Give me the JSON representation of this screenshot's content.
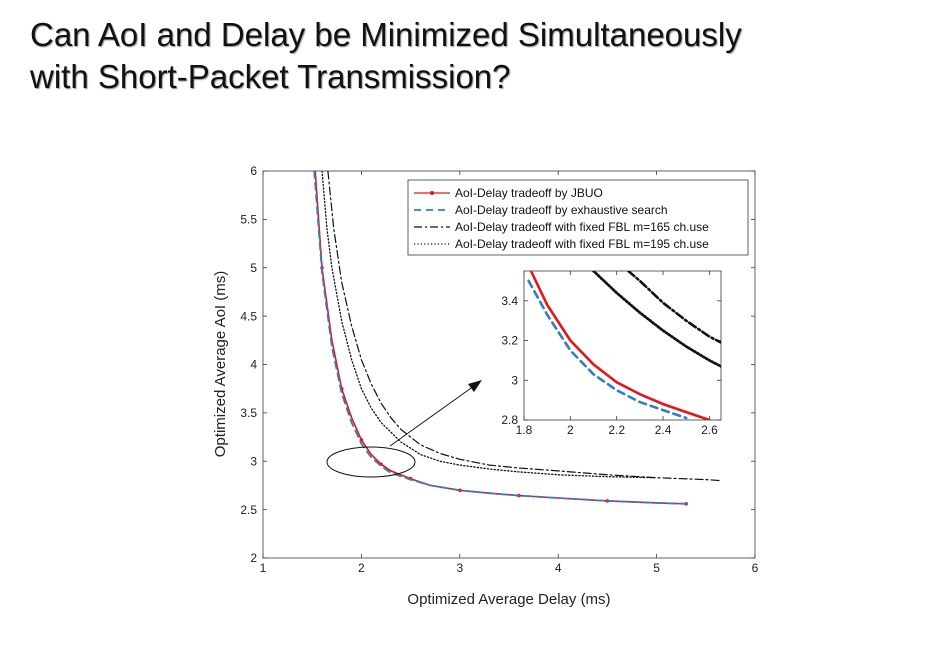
{
  "slide": {
    "title_line1": "Can AoI and Delay be Minimized Simultaneously",
    "title_line2": "with Short-Packet Transmission?"
  },
  "chart_data": [
    {
      "type": "line",
      "xlabel": "Optimized Average Delay (ms)",
      "ylabel": "Optimized Average AoI (ms)",
      "xlim": [
        1,
        6
      ],
      "ylim": [
        2,
        6
      ],
      "xticks": [
        "1",
        "2",
        "3",
        "4",
        "5",
        "6"
      ],
      "yticks": [
        "2",
        "2.5",
        "3",
        "3.5",
        "4",
        "4.5",
        "5",
        "5.5",
        "6"
      ],
      "grid": false,
      "legend_position": "top-right",
      "series": [
        {
          "name": "AoI-Delay tradeoff by JBUO",
          "color": "#e8141b",
          "style": "solid-markers",
          "x": [
            1.53,
            1.6,
            1.7,
            1.8,
            1.9,
            2.0,
            2.1,
            2.2,
            2.3,
            2.5,
            2.7,
            3.0,
            3.3,
            3.6,
            4.0,
            4.5,
            5.0,
            5.3
          ],
          "y": [
            6.0,
            5.0,
            4.25,
            3.75,
            3.45,
            3.22,
            3.07,
            2.97,
            2.9,
            2.82,
            2.75,
            2.7,
            2.67,
            2.645,
            2.62,
            2.59,
            2.57,
            2.56
          ]
        },
        {
          "name": "AoI-Delay tradeoff by exhaustive search",
          "color": "#2f7fc4",
          "style": "dashed",
          "x": [
            1.52,
            1.6,
            1.7,
            1.8,
            1.9,
            2.0,
            2.1,
            2.2,
            2.3,
            2.5,
            2.7,
            3.0,
            3.3,
            3.6,
            4.0,
            4.5,
            5.0,
            5.3
          ],
          "y": [
            6.0,
            4.95,
            4.18,
            3.7,
            3.4,
            3.18,
            3.04,
            2.95,
            2.88,
            2.81,
            2.75,
            2.7,
            2.67,
            2.645,
            2.62,
            2.59,
            2.57,
            2.56
          ]
        },
        {
          "name": "AoI-Delay tradeoff with fixed FBL m=165 ch.use",
          "color": "#111111",
          "style": "dashdot",
          "x": [
            1.66,
            1.72,
            1.8,
            1.9,
            2.0,
            2.1,
            2.2,
            2.3,
            2.4,
            2.6,
            2.8,
            3.0,
            3.3,
            3.6,
            4.0,
            4.5,
            5.0,
            5.5,
            5.65
          ],
          "y": [
            6.0,
            5.4,
            4.85,
            4.4,
            4.05,
            3.8,
            3.6,
            3.45,
            3.33,
            3.17,
            3.08,
            3.02,
            2.96,
            2.93,
            2.9,
            2.86,
            2.83,
            2.81,
            2.8
          ]
        },
        {
          "name": "AoI-Delay tradeoff with fixed FBL m=195 ch.use",
          "color": "#111111",
          "style": "dotted",
          "x": [
            1.6,
            1.65,
            1.7,
            1.8,
            1.9,
            2.0,
            2.1,
            2.2,
            2.4,
            2.6,
            2.8,
            3.0,
            3.3,
            3.6,
            4.0,
            4.5,
            5.0
          ],
          "y": [
            6.0,
            5.4,
            5.0,
            4.45,
            4.05,
            3.75,
            3.55,
            3.4,
            3.2,
            3.07,
            3.0,
            2.96,
            2.92,
            2.89,
            2.86,
            2.84,
            2.83
          ]
        }
      ]
    },
    {
      "type": "line",
      "xlim": [
        1.8,
        2.65
      ],
      "ylim": [
        2.8,
        3.55
      ],
      "xticks": [
        "1.8",
        "2",
        "2.2",
        "2.4",
        "2.6"
      ],
      "yticks": [
        "2.8",
        "3",
        "3.2",
        "3.4"
      ],
      "grid": false,
      "series": [
        {
          "color": "#e8141b",
          "style": "solid",
          "x": [
            1.83,
            1.9,
            2.0,
            2.1,
            2.2,
            2.3,
            2.4,
            2.5,
            2.6
          ],
          "y": [
            3.55,
            3.38,
            3.2,
            3.08,
            2.99,
            2.93,
            2.88,
            2.84,
            2.8
          ]
        },
        {
          "color": "#2f7fc4",
          "style": "dashed",
          "x": [
            1.82,
            1.9,
            2.0,
            2.1,
            2.2,
            2.3,
            2.4,
            2.5
          ],
          "y": [
            3.5,
            3.33,
            3.15,
            3.03,
            2.95,
            2.89,
            2.85,
            2.81
          ]
        },
        {
          "color": "#111111",
          "style": "dashdot",
          "x": [
            2.25,
            2.3,
            2.4,
            2.5,
            2.6,
            2.65
          ],
          "y": [
            3.55,
            3.5,
            3.39,
            3.3,
            3.22,
            3.19
          ]
        },
        {
          "color": "#111111",
          "style": "dotted",
          "x": [
            2.1,
            2.2,
            2.3,
            2.4,
            2.5,
            2.6,
            2.65
          ],
          "y": [
            3.55,
            3.44,
            3.34,
            3.25,
            3.17,
            3.1,
            3.07
          ]
        }
      ]
    }
  ]
}
